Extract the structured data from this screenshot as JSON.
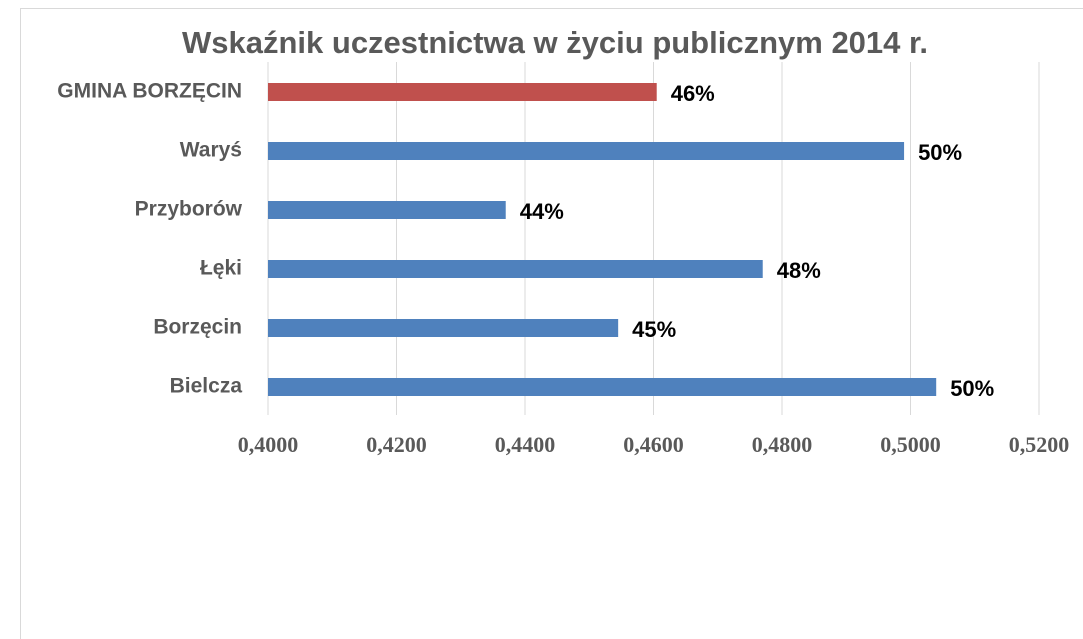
{
  "chart_data": {
    "type": "bar",
    "orientation": "horizontal",
    "title": "Wskaźnik uczestnictwa w życiu publicznym 2014 r.",
    "categories": [
      "GMINA BORZĘCIN",
      "Waryś",
      "Przyborów",
      "Łęki",
      "Borzęcin",
      "Bielcza"
    ],
    "values": [
      0.4605,
      0.499,
      0.437,
      0.477,
      0.4545,
      0.504
    ],
    "value_labels": [
      "46%",
      "50%",
      "44%",
      "48%",
      "45%",
      "50%"
    ],
    "colors": [
      "#c0504d",
      "#4f81bd",
      "#4f81bd",
      "#4f81bd",
      "#4f81bd",
      "#4f81bd"
    ],
    "xlim": [
      0.4,
      0.52
    ],
    "xticks": [
      {
        "value": 0.4,
        "label": "0,4000"
      },
      {
        "value": 0.42,
        "label": "0,4200"
      },
      {
        "value": 0.44,
        "label": "0,4400"
      },
      {
        "value": 0.46,
        "label": "0,4600"
      },
      {
        "value": 0.48,
        "label": "0,4800"
      },
      {
        "value": 0.5,
        "label": "0,5000"
      },
      {
        "value": 0.52,
        "label": "0,5200"
      }
    ],
    "grid": true
  }
}
